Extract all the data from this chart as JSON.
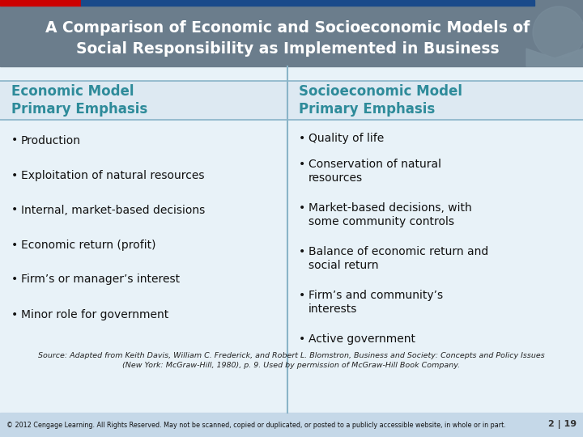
{
  "title_line1": "A Comparison of Economic and Socioeconomic Models of",
  "title_line2": "Social Responsibility as Implemented in Business",
  "title_bg_color": "#6b7d8c",
  "title_text_color": "#ffffff",
  "left_header": "Economic Model\nPrimary Emphasis",
  "right_header": "Socioeconomic Model\nPrimary Emphasis",
  "header_text_color": "#2e8b9a",
  "header_bg_color": "#dde9f2",
  "divider_color": "#8ab4c8",
  "body_bg_color": "#e8f2f8",
  "left_bullets": [
    "Production",
    "Exploitation of natural resources",
    "Internal, market-based decisions",
    "Economic return (profit)",
    "Firm’s or manager’s interest",
    "Minor role for government"
  ],
  "right_bullets": [
    "Quality of life",
    "Conservation of natural\nresources",
    "Market-based decisions, with\nsome community controls",
    "Balance of economic return and\nsocial return",
    "Firm’s and community’s\ninterests",
    "Active government"
  ],
  "bullet_text_color": "#111111",
  "source_line1": "Source: Adapted from Keith Davis, William C. Frederick, and Robert L. Blomstron, ",
  "source_italic": "Business and Society: Concepts and Policy Issues",
  "source_line2": "(New York: McGraw-Hill, 1980), p. 9. Used by permission of McGraw-Hill Book Company.",
  "footer_text": "© 2012 Cengage Learning. All Rights Reserved. May not be scanned, copied or duplicated, or posted to a publicly accessible website, in whole or in part.",
  "footer_right": "2 | 19",
  "footer_bg_color": "#c5d8e8",
  "red_bar_color": "#cc0000",
  "blue_bar_color": "#1a4a8a",
  "corner_color": "#7a8e9c"
}
